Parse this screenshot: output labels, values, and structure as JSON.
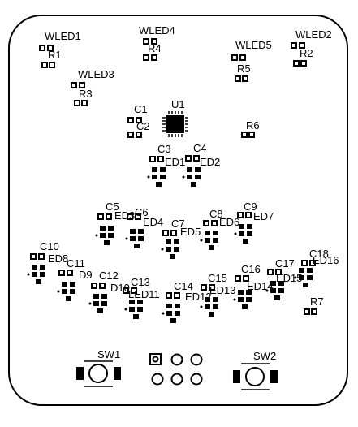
{
  "board": {
    "labels": {
      "wled1": "WLED1",
      "wled2": "WLED2",
      "wled3": "WLED3",
      "wled4": "WLED4",
      "wled5": "WLED5",
      "r1": "R1",
      "r2": "R2",
      "r3": "R3",
      "r4": "R4",
      "r5": "R5",
      "r6": "R6",
      "r7": "R7",
      "u1": "U1",
      "c1": "C1",
      "c2": "C2",
      "c3": "C3",
      "c4": "C4",
      "c5": "C5",
      "c6": "C6",
      "c7": "C7",
      "c8": "C8",
      "c9": "C9",
      "c10": "C10",
      "c11": "C11",
      "c12": "C12",
      "c13": "C13",
      "c14": "C14",
      "c15": "C15",
      "c16": "C16",
      "c17": "C17",
      "c18": "C18",
      "led1": "ED1",
      "led2": "ED2",
      "led3": "ED3",
      "led4": "ED4",
      "led5": "ED5",
      "led6": "ED6",
      "led7": "ED7",
      "led8": "ED8",
      "led9": "D9",
      "led10": "D10",
      "led11": "LED11",
      "led12": "ED12",
      "led13": "ED13",
      "led14": "ED14",
      "led15": "ED15",
      "led16": "ED16",
      "sw1": "SW1",
      "sw2": "SW2"
    }
  }
}
